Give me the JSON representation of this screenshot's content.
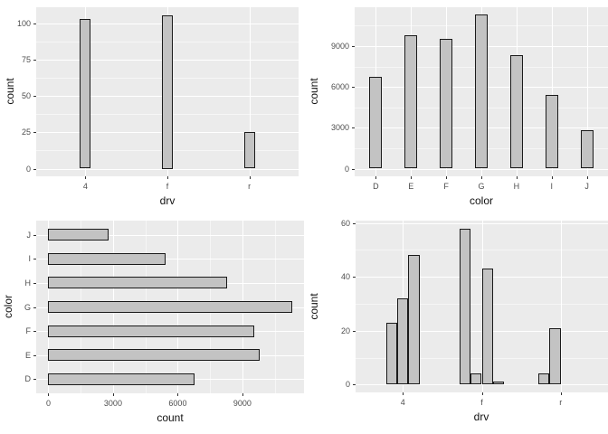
{
  "theme": {
    "panel_bg": "#ebebeb",
    "grid_major_color": "#ffffff",
    "bar_fill": "#c3c3c3",
    "bar_stroke": "#1a1a1a",
    "tick_label_color": "#4d4d4d",
    "axis_title_color": "#111111"
  },
  "chart_data": [
    {
      "type": "bar",
      "orientation": "vertical",
      "title": "",
      "xlabel": "drv",
      "ylabel": "count",
      "categories": [
        "4",
        "f",
        "r"
      ],
      "values": [
        103,
        106,
        25
      ],
      "yticks": [
        0,
        25,
        50,
        75,
        100
      ],
      "ylim": [
        0,
        116.6
      ],
      "grid": true,
      "legend": "none"
    },
    {
      "type": "bar",
      "orientation": "vertical",
      "title": "",
      "xlabel": "color",
      "ylabel": "count",
      "categories": [
        "D",
        "E",
        "F",
        "G",
        "H",
        "I",
        "J"
      ],
      "values": [
        6775,
        9797,
        9542,
        11292,
        8304,
        5422,
        2808
      ],
      "yticks": [
        0,
        3000,
        6000,
        9000
      ],
      "ylim": [
        0,
        12421
      ],
      "grid": true,
      "legend": "none"
    },
    {
      "type": "bar",
      "orientation": "horizontal",
      "title": "",
      "xlabel": "count",
      "ylabel": "color",
      "categories_top_to_bottom": [
        "J",
        "I",
        "H",
        "G",
        "F",
        "E",
        "D"
      ],
      "values_top_to_bottom": [
        2808,
        5422,
        8304,
        11292,
        9542,
        9797,
        6775
      ],
      "xticks": [
        0,
        3000,
        6000,
        9000
      ],
      "xlim": [
        0,
        12421
      ],
      "grid": true,
      "legend": "none"
    },
    {
      "type": "grouped-bar",
      "orientation": "vertical",
      "title": "",
      "xlabel": "drv",
      "ylabel": "count",
      "categories": [
        "4",
        "f",
        "r"
      ],
      "groups": [
        {
          "category": "4",
          "values": [
            23,
            32,
            48
          ],
          "cluster_align": "center"
        },
        {
          "category": "f",
          "values": [
            58,
            4,
            43,
            1
          ],
          "cluster_align": "center"
        },
        {
          "category": "r",
          "values": [
            4,
            21
          ],
          "cluster_align": "right"
        }
      ],
      "yticks": [
        0,
        20,
        40,
        60
      ],
      "ylim": [
        0,
        63.8
      ],
      "grid": true,
      "legend": "none"
    }
  ]
}
